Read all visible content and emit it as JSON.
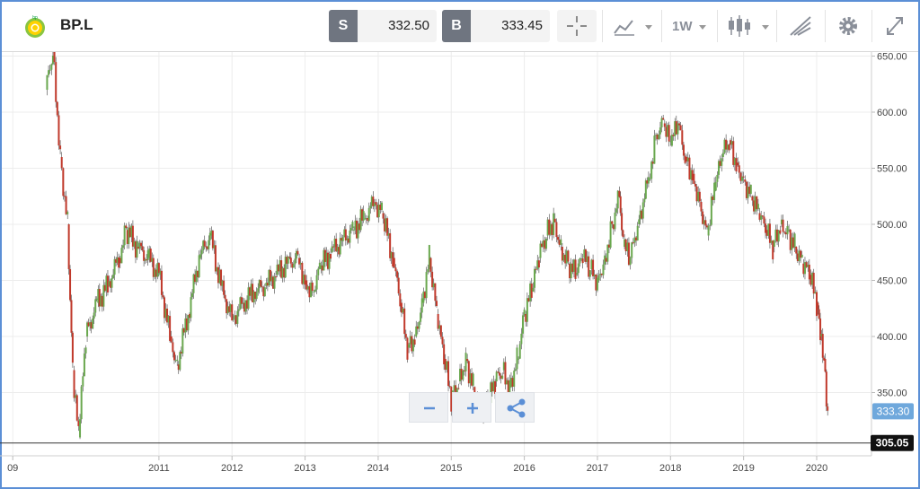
{
  "header": {
    "symbol": "BP.L",
    "logo_icon": "bp-helios-logo-icon",
    "sell": {
      "tag": "S",
      "price": "332.50"
    },
    "buy": {
      "tag": "B",
      "price": "333.45"
    },
    "timeframe": "1W",
    "icons": [
      "crosshair-icon",
      "chart-type-icon",
      "candlestick-icon",
      "drawing-tools-icon",
      "settings-icon",
      "fullscreen-icon"
    ]
  },
  "chart_data": {
    "type": "candlestick",
    "title": "",
    "xlabel": "",
    "ylabel": "",
    "ylim": [
      300,
      660
    ],
    "x_ticks": [
      "09",
      "2011",
      "2012",
      "2013",
      "2014",
      "2015",
      "2016",
      "2017",
      "2018",
      "2019",
      "2020"
    ],
    "y_ticks": [
      "650.00",
      "600.00",
      "550.00",
      "500.00",
      "450.00",
      "400.00",
      "350.00"
    ],
    "current_price_label": "333.30",
    "crosshair_label": "305.05",
    "grid": true,
    "up_color": "#6aa84f",
    "down_color": "#c0392b",
    "series": [
      {
        "t": 2009.45,
        "v": 620
      },
      {
        "t": 2009.55,
        "v": 655
      },
      {
        "t": 2009.65,
        "v": 560
      },
      {
        "t": 2009.75,
        "v": 500
      },
      {
        "t": 2009.82,
        "v": 370
      },
      {
        "t": 2009.9,
        "v": 310
      },
      {
        "t": 2010.0,
        "v": 400
      },
      {
        "t": 2010.15,
        "v": 430
      },
      {
        "t": 2010.3,
        "v": 445
      },
      {
        "t": 2010.45,
        "v": 470
      },
      {
        "t": 2010.55,
        "v": 495
      },
      {
        "t": 2010.7,
        "v": 480
      },
      {
        "t": 2010.85,
        "v": 470
      },
      {
        "t": 2011.0,
        "v": 455
      },
      {
        "t": 2011.15,
        "v": 400
      },
      {
        "t": 2011.25,
        "v": 375
      },
      {
        "t": 2011.4,
        "v": 420
      },
      {
        "t": 2011.55,
        "v": 470
      },
      {
        "t": 2011.7,
        "v": 490
      },
      {
        "t": 2011.85,
        "v": 445
      },
      {
        "t": 2012.0,
        "v": 415
      },
      {
        "t": 2012.15,
        "v": 430
      },
      {
        "t": 2012.3,
        "v": 440
      },
      {
        "t": 2012.45,
        "v": 445
      },
      {
        "t": 2012.6,
        "v": 455
      },
      {
        "t": 2012.75,
        "v": 465
      },
      {
        "t": 2012.9,
        "v": 470
      },
      {
        "t": 2013.0,
        "v": 450
      },
      {
        "t": 2013.1,
        "v": 440
      },
      {
        "t": 2013.2,
        "v": 460
      },
      {
        "t": 2013.35,
        "v": 475
      },
      {
        "t": 2013.5,
        "v": 485
      },
      {
        "t": 2013.65,
        "v": 495
      },
      {
        "t": 2013.8,
        "v": 505
      },
      {
        "t": 2013.95,
        "v": 520
      },
      {
        "t": 2014.05,
        "v": 510
      },
      {
        "t": 2014.2,
        "v": 470
      },
      {
        "t": 2014.3,
        "v": 430
      },
      {
        "t": 2014.4,
        "v": 390
      },
      {
        "t": 2014.5,
        "v": 400
      },
      {
        "t": 2014.6,
        "v": 430
      },
      {
        "t": 2014.7,
        "v": 470
      },
      {
        "t": 2014.8,
        "v": 420
      },
      {
        "t": 2014.9,
        "v": 380
      },
      {
        "t": 2015.0,
        "v": 345
      },
      {
        "t": 2015.1,
        "v": 360
      },
      {
        "t": 2015.2,
        "v": 380
      },
      {
        "t": 2015.3,
        "v": 355
      },
      {
        "t": 2015.4,
        "v": 335
      },
      {
        "t": 2015.5,
        "v": 340
      },
      {
        "t": 2015.6,
        "v": 360
      },
      {
        "t": 2015.7,
        "v": 370
      },
      {
        "t": 2015.8,
        "v": 355
      },
      {
        "t": 2015.9,
        "v": 380
      },
      {
        "t": 2016.0,
        "v": 420
      },
      {
        "t": 2016.1,
        "v": 440
      },
      {
        "t": 2016.2,
        "v": 470
      },
      {
        "t": 2016.3,
        "v": 490
      },
      {
        "t": 2016.4,
        "v": 505
      },
      {
        "t": 2016.5,
        "v": 480
      },
      {
        "t": 2016.6,
        "v": 465
      },
      {
        "t": 2016.7,
        "v": 455
      },
      {
        "t": 2016.8,
        "v": 470
      },
      {
        "t": 2016.9,
        "v": 460
      },
      {
        "t": 2017.0,
        "v": 450
      },
      {
        "t": 2017.1,
        "v": 470
      },
      {
        "t": 2017.2,
        "v": 500
      },
      {
        "t": 2017.3,
        "v": 525
      },
      {
        "t": 2017.35,
        "v": 480
      },
      {
        "t": 2017.45,
        "v": 470
      },
      {
        "t": 2017.55,
        "v": 500
      },
      {
        "t": 2017.7,
        "v": 540
      },
      {
        "t": 2017.8,
        "v": 580
      },
      {
        "t": 2017.9,
        "v": 590
      },
      {
        "t": 2018.0,
        "v": 570
      },
      {
        "t": 2018.1,
        "v": 590
      },
      {
        "t": 2018.2,
        "v": 560
      },
      {
        "t": 2018.3,
        "v": 545
      },
      {
        "t": 2018.4,
        "v": 520
      },
      {
        "t": 2018.5,
        "v": 490
      },
      {
        "t": 2018.6,
        "v": 530
      },
      {
        "t": 2018.7,
        "v": 560
      },
      {
        "t": 2018.8,
        "v": 575
      },
      {
        "t": 2018.9,
        "v": 555
      },
      {
        "t": 2019.0,
        "v": 540
      },
      {
        "t": 2019.1,
        "v": 525
      },
      {
        "t": 2019.2,
        "v": 510
      },
      {
        "t": 2019.3,
        "v": 495
      },
      {
        "t": 2019.4,
        "v": 480
      },
      {
        "t": 2019.5,
        "v": 500
      },
      {
        "t": 2019.6,
        "v": 495
      },
      {
        "t": 2019.7,
        "v": 480
      },
      {
        "t": 2019.8,
        "v": 465
      },
      {
        "t": 2019.9,
        "v": 455
      },
      {
        "t": 2020.0,
        "v": 430
      },
      {
        "t": 2020.05,
        "v": 400
      },
      {
        "t": 2020.1,
        "v": 380
      },
      {
        "t": 2020.15,
        "v": 333
      }
    ]
  }
}
